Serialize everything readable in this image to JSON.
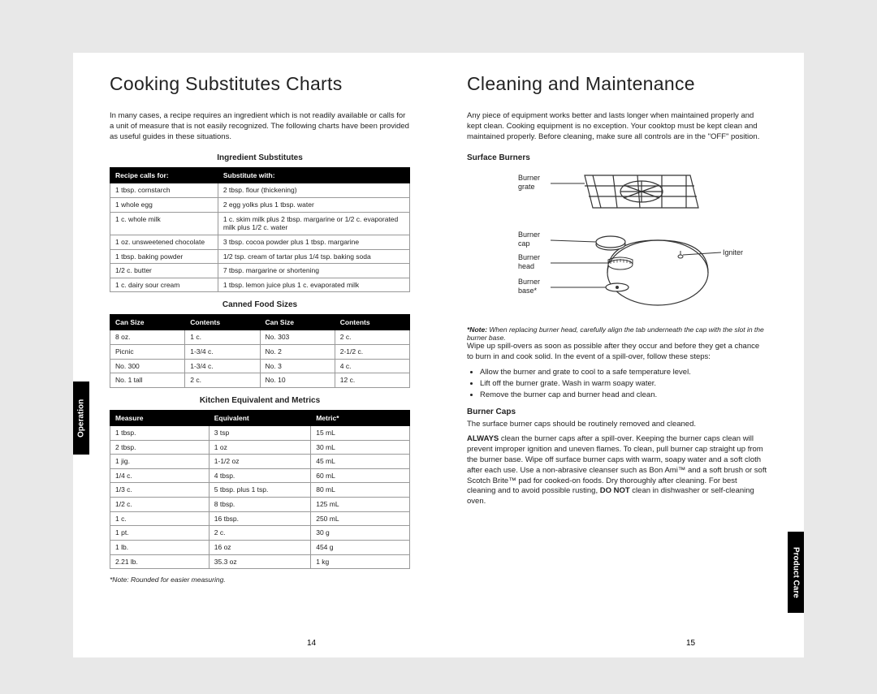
{
  "left": {
    "title": "Cooking Substitutes Charts",
    "intro": "In many cases, a recipe requires an ingredient which is not readily available or calls for a unit of measure that is not easily recognized. The following charts have been provided as useful guides in these situations.",
    "table1": {
      "heading": "Ingredient Substitutes",
      "headers": [
        "Recipe calls for:",
        "Substitute with:"
      ],
      "rows": [
        [
          "1 tbsp. cornstarch",
          "2 tbsp. flour (thickening)"
        ],
        [
          "1 whole egg",
          "2 egg yolks plus 1 tbsp. water"
        ],
        [
          "1 c. whole milk",
          "1 c. skim milk plus 2 tbsp. margarine or 1/2 c. evaporated milk plus 1/2 c. water"
        ],
        [
          "1 oz. unsweetened chocolate",
          "3 tbsp. cocoa powder plus 1 tbsp. margarine"
        ],
        [
          "1 tbsp. baking powder",
          "1/2 tsp. cream of tartar plus 1/4 tsp. baking soda"
        ],
        [
          "1/2 c. butter",
          "7 tbsp. margarine or shortening"
        ],
        [
          "1 c. dairy sour cream",
          "1 tbsp. lemon juice plus 1 c. evaporated milk"
        ]
      ]
    },
    "table2": {
      "heading": "Canned Food Sizes",
      "headers": [
        "Can Size",
        "Contents",
        "Can Size",
        "Contents"
      ],
      "rows": [
        [
          "8 oz.",
          "1 c.",
          "No. 303",
          "2 c."
        ],
        [
          "Picnic",
          "1-3/4 c.",
          "No. 2",
          "2-1/2 c."
        ],
        [
          "No. 300",
          "1-3/4 c.",
          "No. 3",
          "4 c."
        ],
        [
          "No. 1 tall",
          "2 c.",
          "No. 10",
          "12 c."
        ]
      ]
    },
    "table3": {
      "heading": "Kitchen Equivalent and Metrics",
      "headers": [
        "Measure",
        "Equivalent",
        "Metric*"
      ],
      "rows": [
        [
          "1 tbsp.",
          "3 tsp",
          "15 mL"
        ],
        [
          "2 tbsp.",
          "1 oz",
          "30 mL"
        ],
        [
          "1 jig.",
          "1-1/2 oz",
          "45 mL"
        ],
        [
          "1/4 c.",
          "4 tbsp.",
          "60 mL"
        ],
        [
          "1/3 c.",
          "5 tbsp. plus 1 tsp.",
          "80 mL"
        ],
        [
          "1/2 c.",
          "8 tbsp.",
          "125 mL"
        ],
        [
          "1 c.",
          "16 tbsp.",
          "250 mL"
        ],
        [
          "1 pt.",
          "2 c.",
          "30 g"
        ],
        [
          "1 lb.",
          "16 oz",
          "454 g"
        ],
        [
          "2.21 lb.",
          "35.3 oz",
          "1 kg"
        ]
      ]
    },
    "note": "*Note: Rounded for easier measuring.",
    "page_num": "14"
  },
  "right": {
    "title": "Cleaning and Maintenance",
    "intro": "Any piece of equipment works better and lasts longer when maintained properly and kept clean. Cooking equipment is no exception. Your cooktop must be kept clean and maintained properly. Before cleaning, make sure all controls are in the \"OFF\" position.",
    "section1_heading": "Surface Burners",
    "diagram_labels": {
      "grate": "Burner grate",
      "cap": "Burner cap",
      "head": "Burner head",
      "base": "Burner base*",
      "igniter": "Igniter"
    },
    "note1_prefix": "*Note:",
    "note1": "When replacing burner head, carefully align the tab underneath the cap with the slot in the burner base.",
    "body1": "Wipe up spill-overs as soon as possible after they occur and before they get a chance to burn in and cook solid. In the event of a spill-over, follow these steps:",
    "steps": [
      "Allow the burner and grate to cool to a safe temperature level.",
      "Lift off the burner grate. Wash in warm soapy water.",
      "Remove the burner cap and burner head and clean."
    ],
    "section2_heading": "Burner Caps",
    "body2a": "The surface burner caps should be routinely removed and cleaned.",
    "body2b_strong": "ALWAYS",
    "body2b": " clean the burner caps after a spill-over. Keeping the burner caps clean will prevent improper ignition and uneven flames. To clean, pull burner cap straight up from the burner base. Wipe off surface burner caps with warm, soapy water and a soft cloth after each use. Use a non-abrasive cleanser such as Bon Ami™ and a soft brush or soft Scotch Brite™ pad for cooked-on foods. Dry thoroughly after cleaning. For best cleaning and to avoid possible rusting, ",
    "body2b_strong2": "DO NOT",
    "body2b_tail": " clean in dishwasher or self-cleaning oven.",
    "page_num": "15"
  },
  "tabs": {
    "operation": "Operation",
    "product_care": "Product Care"
  },
  "colors": {
    "page_bg": "#e8e8e8",
    "sheet_bg": "#ffffff",
    "header_bg": "#000000",
    "header_fg": "#ffffff",
    "border": "#999999",
    "text": "#222222"
  }
}
